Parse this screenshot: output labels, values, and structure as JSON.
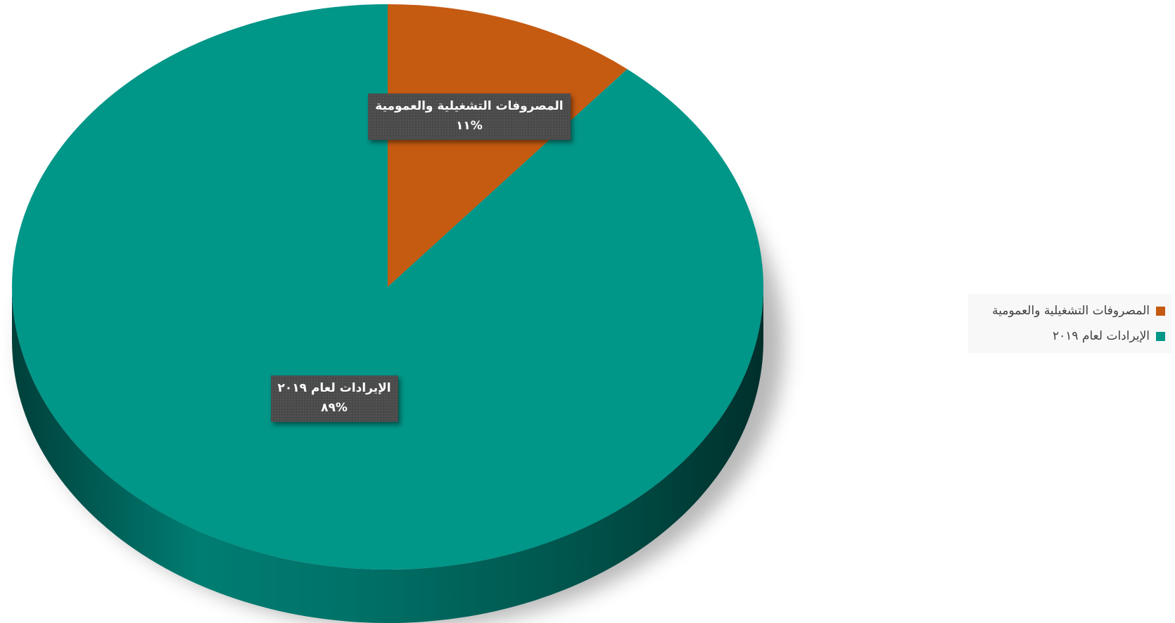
{
  "chart_data": {
    "type": "pie",
    "categories": [
      "المصروفات التشغيلية والعمومية",
      "الإيرادات لعام ٢٠١٩"
    ],
    "values": [
      11,
      89
    ],
    "percent_labels": [
      "%١١",
      "%٨٩"
    ],
    "colors": [
      "#c55a11",
      "#009688"
    ],
    "side_colors": [
      "#7a360a",
      "#004a44"
    ],
    "legend_position": "right",
    "grid": false,
    "title": ""
  }
}
